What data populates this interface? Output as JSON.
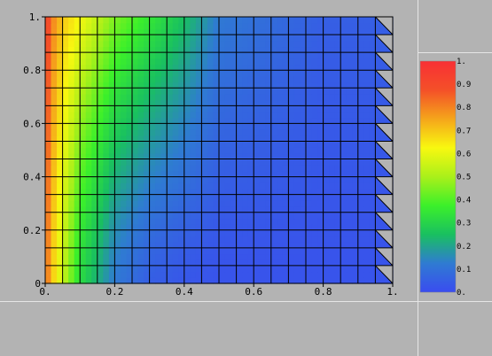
{
  "chart_data": {
    "type": "heatmap",
    "title": "",
    "xlabel": "",
    "ylabel": "",
    "xlim": [
      0,
      1
    ],
    "ylim": [
      0,
      1
    ],
    "x_ticks": [
      "0.",
      "0.2",
      "0.4",
      "0.6",
      "0.8",
      "1."
    ],
    "y_ticks": [
      "0",
      "0.2",
      "0.4",
      "0.6",
      "0.8",
      "1."
    ],
    "grid": true,
    "grid_cols": 20,
    "grid_rows": 15,
    "colorbar": {
      "range": [
        0,
        1
      ],
      "ticks": [
        "0.",
        "0.1",
        "0.2",
        "0.3",
        "0.4",
        "0.5",
        "0.6",
        "0.7",
        "0.8",
        "0.9",
        "1."
      ],
      "placement": "right",
      "colormap": [
        "#3a4cf0",
        "#2f7bd2",
        "#19c060",
        "#3cf02a",
        "#aaf01a",
        "#f8f810",
        "#f5a51b",
        "#f45028",
        "#f82f35"
      ]
    },
    "field_description_values": {
      "x_samples": [
        0.0,
        0.02,
        0.05,
        0.1,
        0.2,
        0.3,
        0.4,
        0.5,
        0.8,
        1.0
      ],
      "u_at_y1": [
        0.95,
        0.8,
        0.7,
        0.62,
        0.45,
        0.35,
        0.25,
        0.12,
        0.05,
        0.05
      ],
      "u_at_y0": [
        0.85,
        0.7,
        0.55,
        0.32,
        0.12,
        0.05,
        0.03,
        0.02,
        0.02,
        0.02
      ]
    }
  }
}
